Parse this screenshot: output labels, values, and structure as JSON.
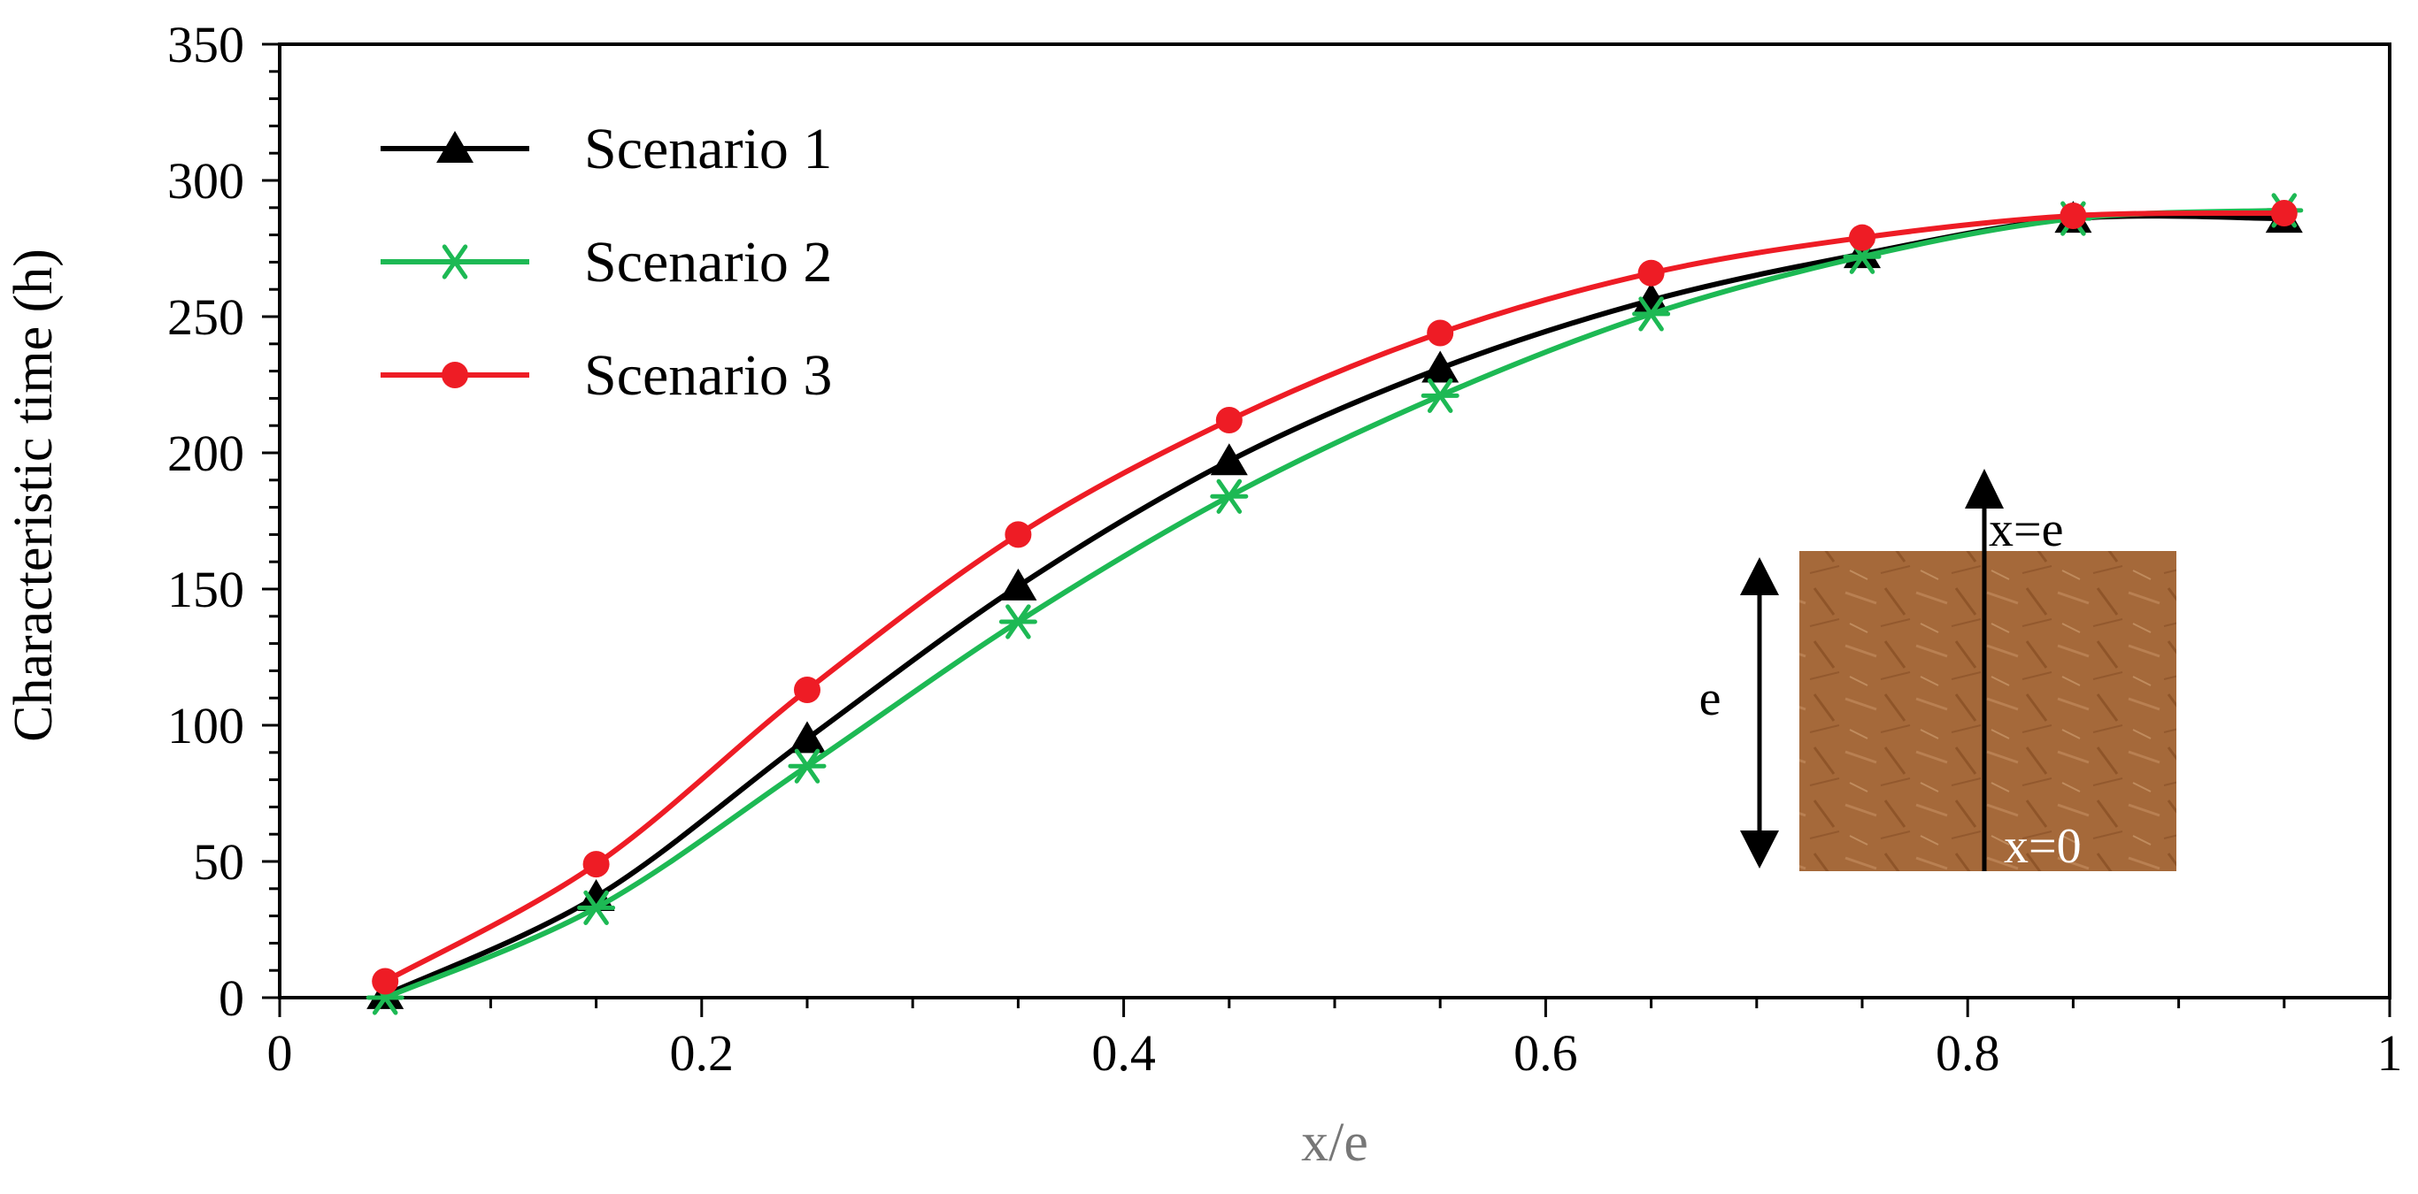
{
  "chart_data": {
    "type": "line",
    "title": "",
    "xlabel": "x/e",
    "ylabel": "Characteristic time (h)",
    "xlim": [
      0,
      1
    ],
    "ylim": [
      0,
      350
    ],
    "xticks": [
      0,
      0.2,
      0.4,
      0.6,
      0.8,
      1
    ],
    "xtick_labels": [
      "0",
      "0.2",
      "0.4",
      "0.6",
      "0.8",
      "1"
    ],
    "yticks": [
      0,
      50,
      100,
      150,
      200,
      250,
      300,
      350
    ],
    "ytick_labels": [
      "0",
      "50",
      "100",
      "150",
      "200",
      "250",
      "300",
      "350"
    ],
    "grid": false,
    "legend_position": "top-left",
    "x": [
      0.05,
      0.15,
      0.25,
      0.35,
      0.45,
      0.55,
      0.65,
      0.75,
      0.85,
      0.95
    ],
    "series": [
      {
        "name": "Scenario 1",
        "color": "#000000",
        "marker": "triangle",
        "values": [
          1,
          37,
          95,
          151,
          197,
          231,
          256,
          273,
          286,
          286
        ]
      },
      {
        "name": "Scenario 2",
        "color": "#1db954",
        "marker": "asterisk",
        "values": [
          0,
          33,
          85,
          138,
          184,
          221,
          251,
          272,
          286,
          289
        ]
      },
      {
        "name": "Scenario 3",
        "color": "#ee1c25",
        "marker": "circle",
        "values": [
          6,
          49,
          113,
          170,
          212,
          244,
          266,
          279,
          287,
          288
        ]
      }
    ],
    "inset": {
      "label_top": "x=e",
      "label_bottom": "x=0",
      "label_side": "e"
    }
  }
}
